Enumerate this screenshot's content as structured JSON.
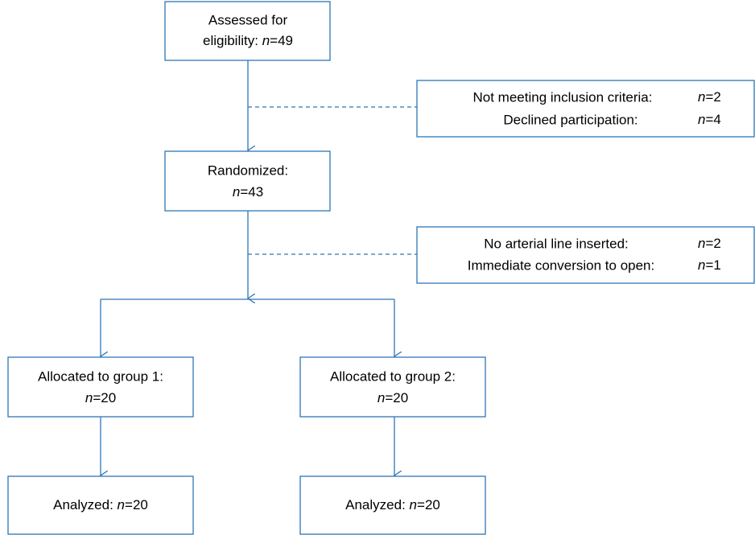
{
  "assessed": {
    "label_1": "Assessed for",
    "label_2": "eligibility:",
    "n": "n",
    "count": "=49"
  },
  "excluded_1": {
    "rows": [
      {
        "label": "Not meeting inclusion criteria:",
        "n": "n",
        "count": "=2"
      },
      {
        "label": "Declined participation:",
        "n": "n",
        "count": "=4"
      }
    ]
  },
  "randomized": {
    "label": "Randomized:",
    "n": "n",
    "count": "=43"
  },
  "excluded_2": {
    "rows": [
      {
        "label": "No arterial line inserted:",
        "n": "n",
        "count": "=2"
      },
      {
        "label": "Immediate conversion to open:",
        "n": "n",
        "count": "=1"
      }
    ]
  },
  "groups": [
    {
      "allocated": {
        "label": "Allocated to group 1:",
        "n": "n",
        "count": "=20"
      },
      "analyzed": {
        "label": "Analyzed:",
        "n": "n",
        "count": "=20"
      }
    },
    {
      "allocated": {
        "label": "Allocated to group 2:",
        "n": "n",
        "count": "=20"
      },
      "analyzed": {
        "label": "Analyzed:",
        "n": "n",
        "count": "=20"
      }
    }
  ]
}
